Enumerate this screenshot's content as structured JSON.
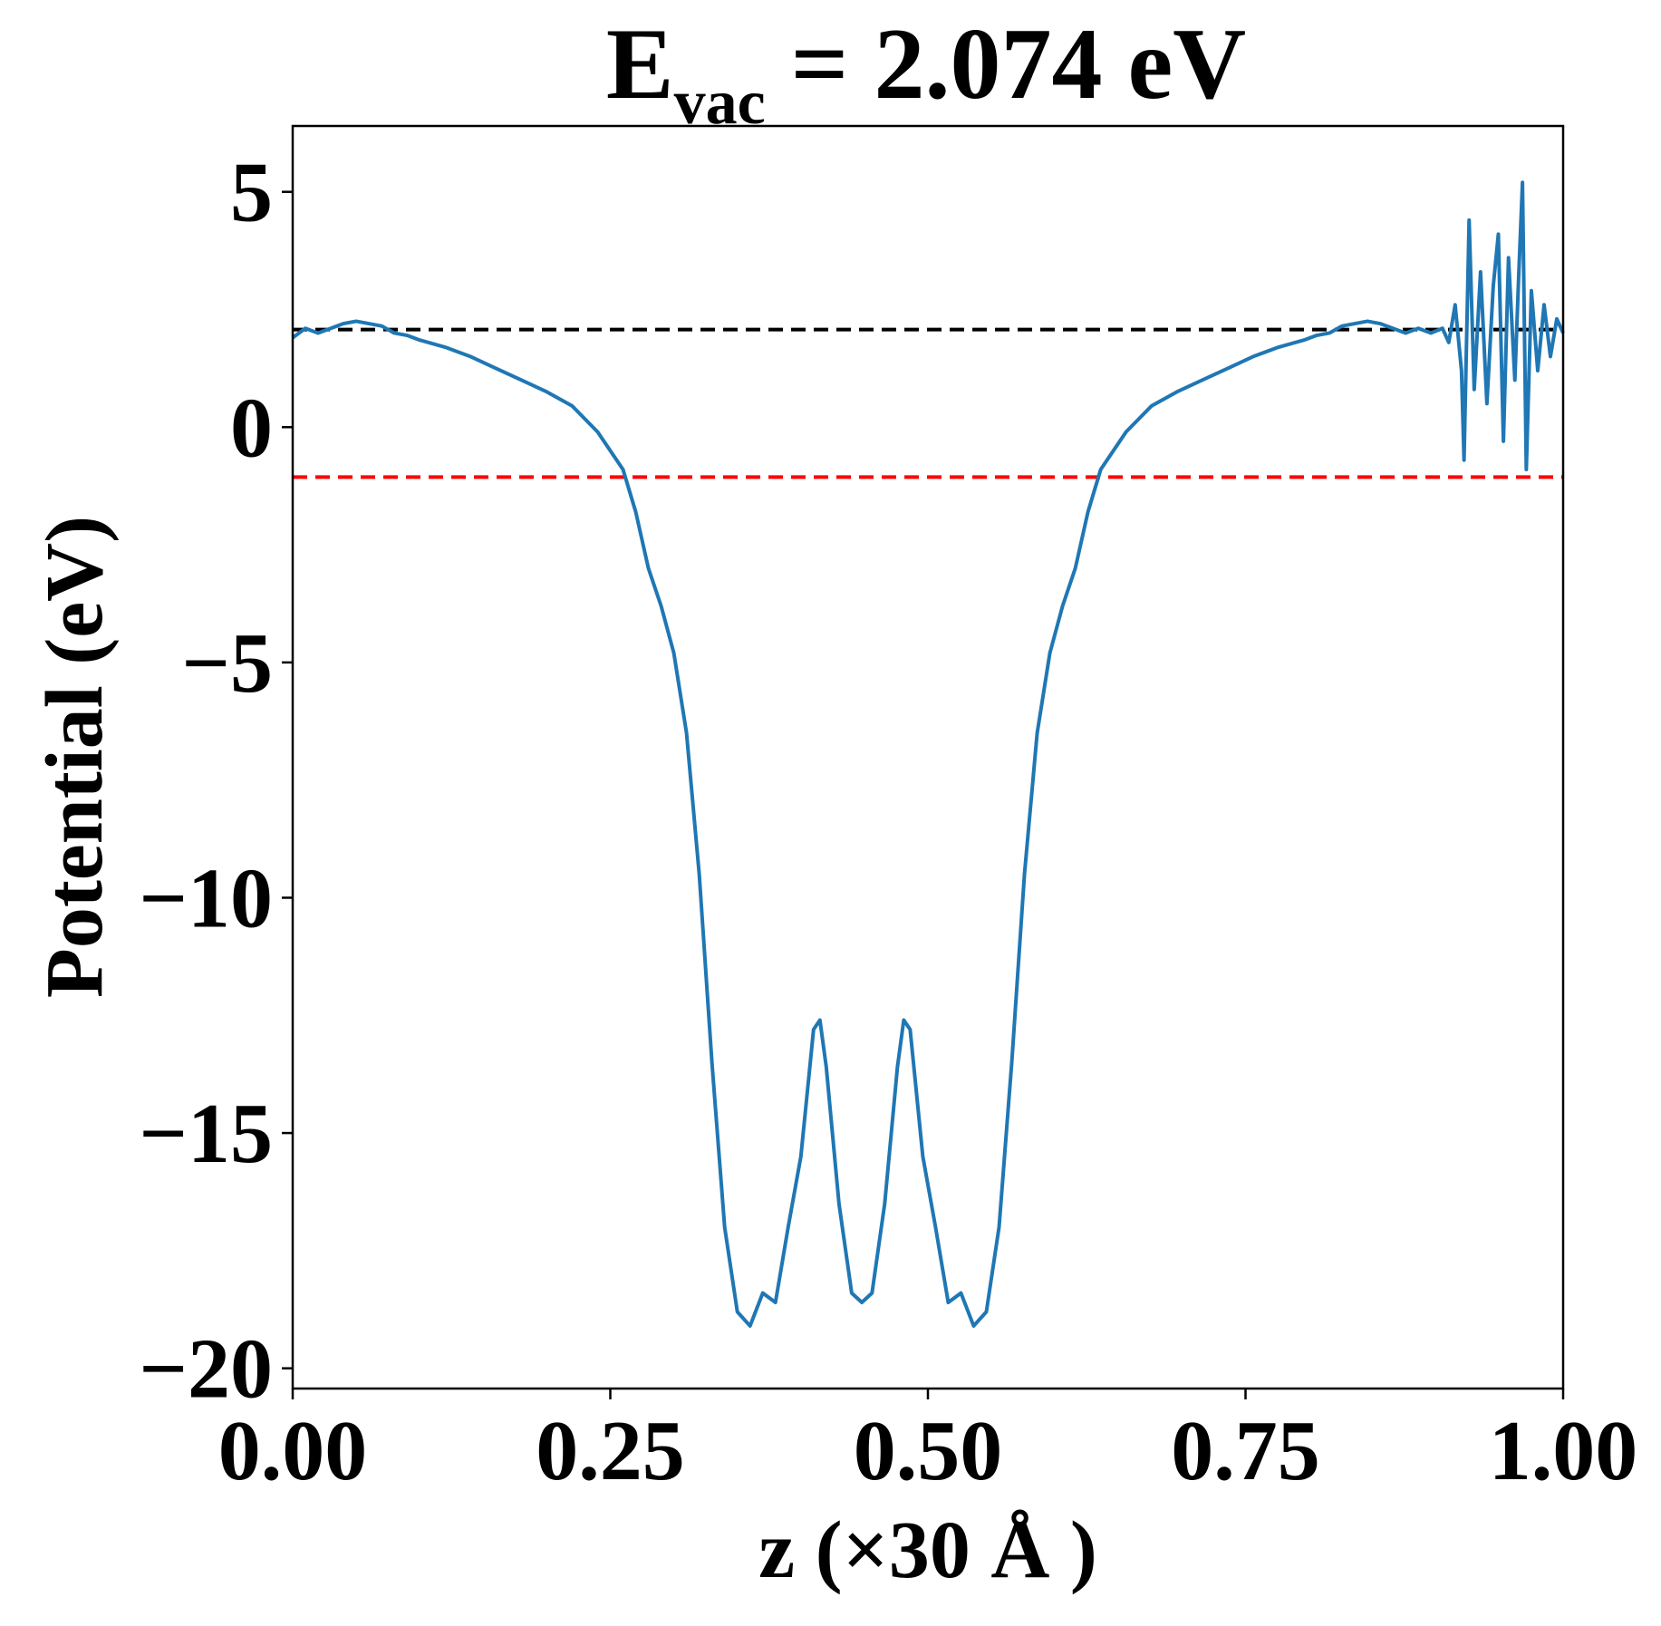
{
  "chart_data": {
    "type": "line",
    "title_parts": {
      "main": "E",
      "sub": "vac",
      "rest": "= 2.074 eV"
    },
    "xlabel": "z (×30 Å )",
    "ylabel": "Potential (eV)",
    "xlim": [
      0,
      1
    ],
    "ylim": [
      -20.43,
      6.4
    ],
    "xticks": [
      {
        "value": 0,
        "label": "0.00"
      },
      {
        "value": 0.25,
        "label": "0.25"
      },
      {
        "value": 0.5,
        "label": "0.50"
      },
      {
        "value": 0.75,
        "label": "0.75"
      },
      {
        "value": 1,
        "label": "1.00"
      }
    ],
    "yticks": [
      {
        "value": -20,
        "label": "−20"
      },
      {
        "value": -15,
        "label": "−15"
      },
      {
        "value": -10,
        "label": "−10"
      },
      {
        "value": -5,
        "label": "−5"
      },
      0,
      5
    ],
    "grid": false,
    "hlines": [
      {
        "value": 2.074,
        "color": "#000000"
      },
      {
        "value": -1.06,
        "color": "#ff0000"
      }
    ],
    "x": [
      0,
      0.01,
      0.02,
      0.03,
      0.04,
      0.05,
      0.06,
      0.07,
      0.08,
      0.09,
      0.1,
      0.12,
      0.14,
      0.16,
      0.18,
      0.2,
      0.22,
      0.24,
      0.25,
      0.26,
      0.27,
      0.28,
      0.29,
      0.3,
      0.31,
      0.32,
      0.33,
      0.34,
      0.35,
      0.36,
      0.37,
      0.38,
      0.39,
      0.4,
      0.41,
      0.415,
      0.42,
      0.43,
      0.44,
      0.448,
      0.456,
      0.466,
      0.476,
      0.481,
      0.486,
      0.496,
      0.506,
      0.516,
      0.526,
      0.536,
      0.546,
      0.556,
      0.566,
      0.576,
      0.586,
      0.596,
      0.606,
      0.616,
      0.626,
      0.636,
      0.646,
      0.656,
      0.676,
      0.696,
      0.716,
      0.736,
      0.756,
      0.776,
      0.796,
      0.806,
      0.816,
      0.826,
      0.836,
      0.846,
      0.856,
      0.866,
      0.876,
      0.886,
      0.896,
      0.905,
      0.91,
      0.915,
      0.92,
      0.922,
      0.926,
      0.93,
      0.935,
      0.94,
      0.945,
      0.949,
      0.953,
      0.957,
      0.962,
      0.965,
      0.968,
      0.971,
      0.975,
      0.98,
      0.985,
      0.99,
      0.995,
      1.0
    ],
    "series": [
      {
        "color": "#1f77b4",
        "values": [
          1.9,
          2.1,
          2.0,
          2.1,
          2.2,
          2.25,
          2.2,
          2.15,
          2.0,
          1.95,
          1.85,
          1.7,
          1.5,
          1.25,
          1.0,
          0.75,
          0.45,
          -0.1,
          -0.5,
          -0.9,
          -1.8,
          -3.0,
          -3.8,
          -4.8,
          -6.5,
          -9.5,
          -13.5,
          -17.0,
          -18.8,
          -19.1,
          -18.4,
          -18.6,
          -17.0,
          -15.5,
          -12.8,
          -12.6,
          -13.6,
          -16.5,
          -18.4,
          -18.6,
          -18.4,
          -16.5,
          -13.6,
          -12.6,
          -12.8,
          -15.5,
          -17.0,
          -18.6,
          -18.4,
          -19.1,
          -18.8,
          -17.0,
          -13.5,
          -9.5,
          -6.5,
          -4.8,
          -3.8,
          -3.0,
          -1.8,
          -0.9,
          -0.5,
          -0.1,
          0.45,
          0.75,
          1.0,
          1.25,
          1.5,
          1.7,
          1.85,
          1.95,
          2.0,
          2.15,
          2.2,
          2.25,
          2.2,
          2.1,
          2.0,
          2.1,
          2.0,
          2.1,
          1.8,
          2.6,
          1.2,
          -0.7,
          4.4,
          0.8,
          3.3,
          0.5,
          3.0,
          4.1,
          -0.3,
          3.6,
          1.0,
          3.2,
          5.2,
          -0.9,
          2.9,
          1.2,
          2.6,
          1.5,
          2.3,
          2.0
        ]
      }
    ]
  }
}
